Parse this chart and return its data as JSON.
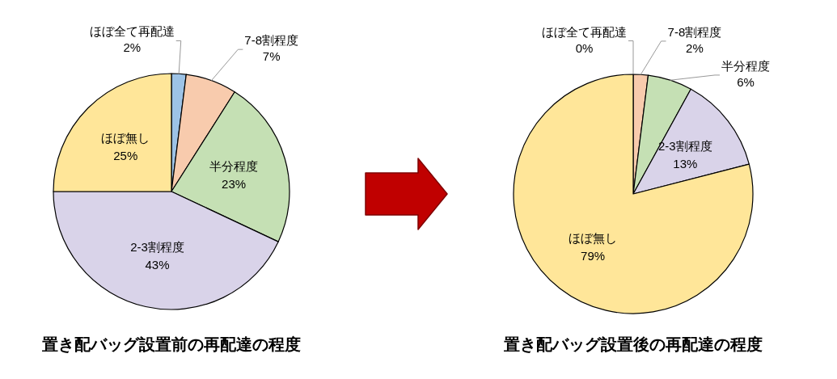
{
  "chart_data": [
    {
      "type": "pie",
      "title": "置き配バッグ設置前の再配達の程度",
      "categories": [
        "ほぼ全て再配達",
        "7-8割程度",
        "半分程度",
        "2-3割程度",
        "ほぼ無し"
      ],
      "values": [
        2,
        7,
        23,
        43,
        25
      ],
      "value_labels": [
        "2%",
        "7%",
        "23%",
        "43%",
        "25%"
      ],
      "colors": [
        "#9dc3e6",
        "#f8cbad",
        "#c5e0b4",
        "#d9d3e9",
        "#ffe699"
      ]
    },
    {
      "type": "pie",
      "title": "置き配バッグ設置後の再配達の程度",
      "categories": [
        "ほぼ全て再配達",
        "7-8割程度",
        "半分程度",
        "2-3割程度",
        "ほぼ無し"
      ],
      "values": [
        0,
        2,
        6,
        13,
        79
      ],
      "value_labels": [
        "0%",
        "2%",
        "6%",
        "13%",
        "79%"
      ],
      "colors": [
        "#9dc3e6",
        "#f8cbad",
        "#c5e0b4",
        "#d9d3e9",
        "#ffe699"
      ]
    }
  ]
}
